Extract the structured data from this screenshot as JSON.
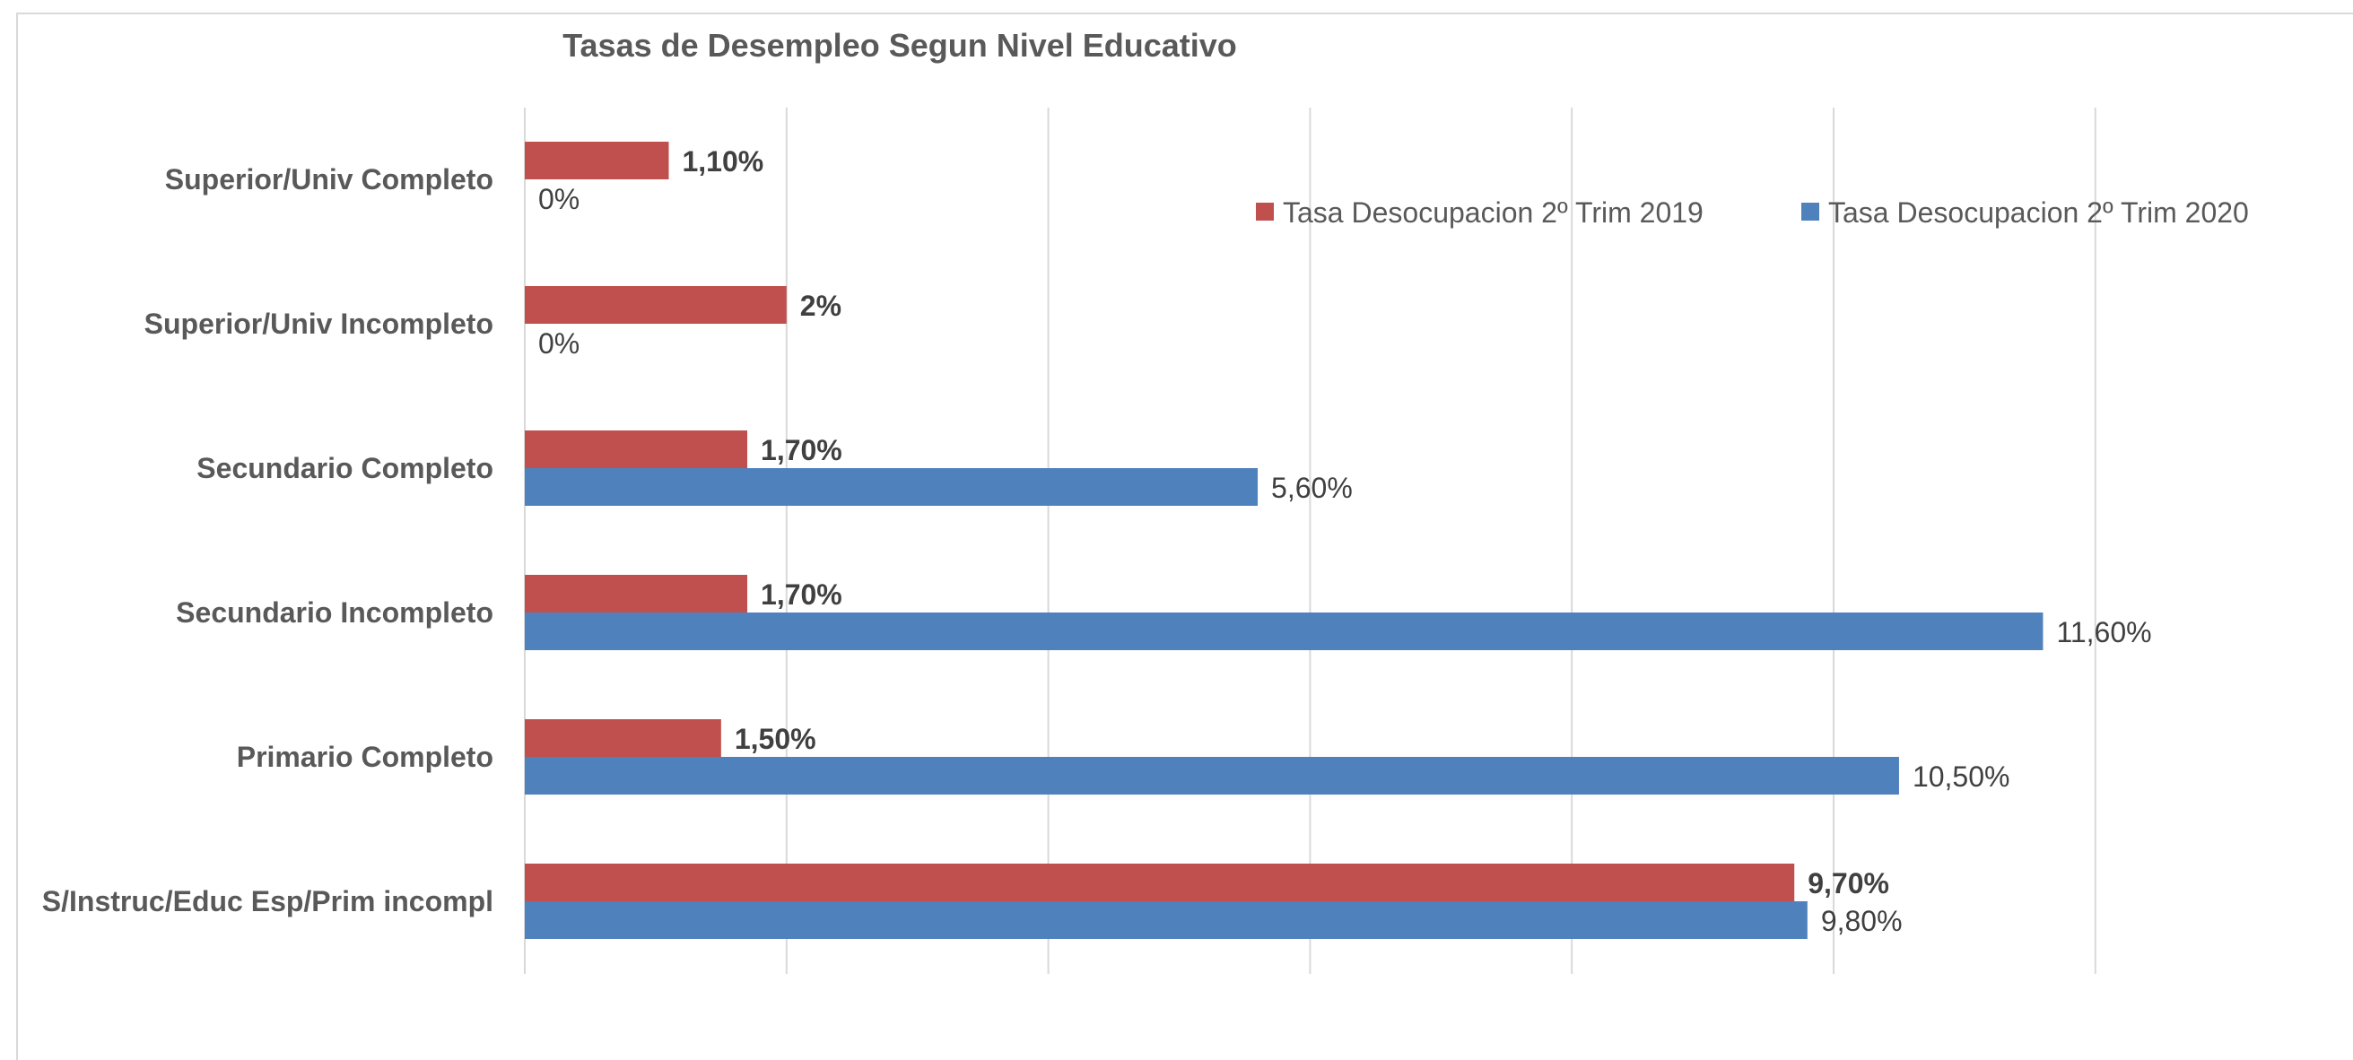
{
  "chart_data": {
    "type": "bar",
    "orientation": "horizontal",
    "title": "Tasas de Desempleo Segun Nivel Educativo",
    "xlabel": "",
    "ylabel": "",
    "xlim": [
      0,
      12
    ],
    "x_gridlines": [
      0,
      2,
      4,
      6,
      8,
      10,
      12
    ],
    "grid": true,
    "legend_position": "top-right",
    "categories": [
      "Superior/Univ Completo",
      "Superior/Univ Incompleto",
      "Secundario Completo",
      "Secundario Incompleto",
      "Primario Completo",
      "S/Instruc/Educ Esp/Prim incompl"
    ],
    "series": [
      {
        "name": "Tasa Desocupacion 2º Trim 2019",
        "color": "#c0504d",
        "values": [
          1.1,
          2.0,
          1.7,
          1.7,
          1.5,
          9.7
        ],
        "labels": [
          "1,10%",
          "2%",
          "1,70%",
          "1,70%",
          "1,50%",
          "9,70%"
        ],
        "label_bold": true
      },
      {
        "name": "Tasa Desocupacion 2º Trim 2020",
        "color": "#4f81bd",
        "values": [
          0,
          0,
          5.6,
          11.6,
          10.5,
          9.8
        ],
        "labels": [
          "0%",
          "0%",
          "5,60%",
          "11,60%",
          "10,50%",
          "9,80%"
        ],
        "label_bold": false
      }
    ]
  }
}
